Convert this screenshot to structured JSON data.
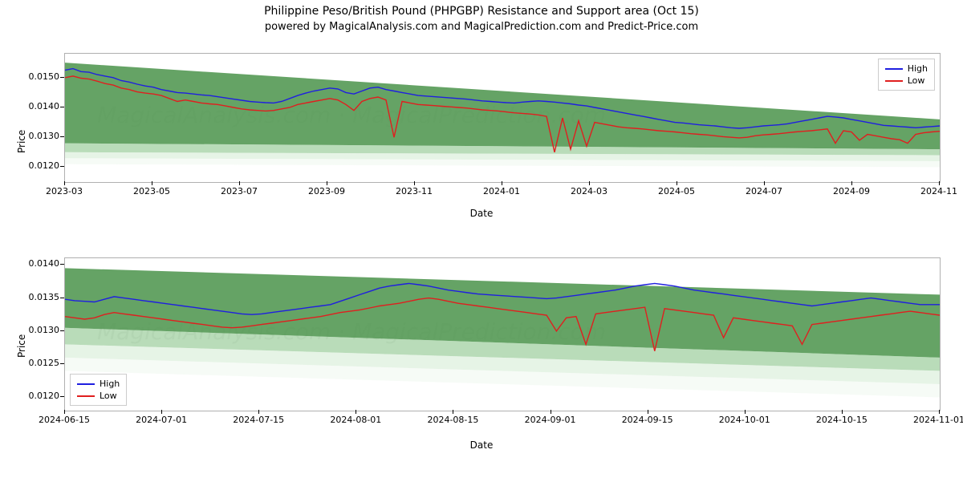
{
  "title": "Philippine Peso/British Pound (PHPGBP) Resistance and Support area (Oct 15)",
  "subtitle": "powered by MagicalAnalysis.com and MagicalPrediction.com and Predict-Price.com",
  "watermark_text": "MagicalAnalysis.com · MagicalPrediction.com",
  "colors": {
    "high": "#1f1fe0",
    "low": "#e01f1f",
    "band_dark": "#4a934a",
    "band_mid": "#7fbf7f",
    "band_light": "#c8e6c8",
    "band_lighter": "#e8f5e8",
    "grid": "#b0b0b0",
    "background": "#ffffff"
  },
  "legend": {
    "high": "High",
    "low": "Low"
  },
  "chart_top": {
    "x_label": "Date",
    "y_label": "Price",
    "x_ticks": [
      "2023-03",
      "2023-05",
      "2023-07",
      "2023-09",
      "2023-11",
      "2024-01",
      "2024-03",
      "2024-05",
      "2024-07",
      "2024-09",
      "2024-11"
    ],
    "y_ticks": [
      0.012,
      0.013,
      0.014,
      0.015
    ],
    "y_lim": [
      0.0115,
      0.0158
    ],
    "x_range_n": 110,
    "legend_pos": "top-right",
    "bands": [
      {
        "y0_start": 0.0155,
        "y0_end": 0.0136,
        "y1_start": 0.0128,
        "y1_end": 0.0126,
        "color": "#4a934a",
        "opacity": 0.85
      },
      {
        "y0_start": 0.0128,
        "y0_end": 0.0126,
        "y1_start": 0.0125,
        "y1_end": 0.0124,
        "color": "#7fbf7f",
        "opacity": 0.55
      },
      {
        "y0_start": 0.0125,
        "y0_end": 0.0124,
        "y1_start": 0.0123,
        "y1_end": 0.0122,
        "color": "#c8e6c8",
        "opacity": 0.45
      },
      {
        "y0_start": 0.0123,
        "y0_end": 0.0122,
        "y1_start": 0.0121,
        "y1_end": 0.012,
        "color": "#e8f5e8",
        "opacity": 0.4
      }
    ],
    "high_series": [
      0.01525,
      0.0153,
      0.0152,
      0.01518,
      0.0151,
      0.01505,
      0.015,
      0.0149,
      0.01485,
      0.01478,
      0.01472,
      0.01468,
      0.0146,
      0.01455,
      0.0145,
      0.01448,
      0.01445,
      0.01442,
      0.0144,
      0.01436,
      0.01432,
      0.01428,
      0.01424,
      0.0142,
      0.01418,
      0.01416,
      0.01415,
      0.0142,
      0.0143,
      0.0144,
      0.01448,
      0.01455,
      0.0146,
      0.01465,
      0.01462,
      0.0145,
      0.01445,
      0.01455,
      0.01465,
      0.01468,
      0.0146,
      0.01455,
      0.0145,
      0.01445,
      0.0144,
      0.01438,
      0.01436,
      0.01434,
      0.01432,
      0.0143,
      0.01428,
      0.01425,
      0.01422,
      0.0142,
      0.01418,
      0.01416,
      0.01415,
      0.01418,
      0.0142,
      0.01422,
      0.0142,
      0.01418,
      0.01415,
      0.01412,
      0.01408,
      0.01405,
      0.014,
      0.01395,
      0.0139,
      0.01385,
      0.0138,
      0.01375,
      0.0137,
      0.01365,
      0.0136,
      0.01355,
      0.0135,
      0.01348,
      0.01345,
      0.01342,
      0.0134,
      0.01338,
      0.01335,
      0.01332,
      0.0133,
      0.01332,
      0.01335,
      0.01338,
      0.0134,
      0.01342,
      0.01345,
      0.0135,
      0.01355,
      0.0136,
      0.01365,
      0.0137,
      0.01368,
      0.01365,
      0.0136,
      0.01355,
      0.0135,
      0.01345,
      0.0134,
      0.01338,
      0.01336,
      0.01334,
      0.01332,
      0.01334,
      0.01336,
      0.01338
    ],
    "low_series": [
      0.015,
      0.01505,
      0.01498,
      0.01495,
      0.01488,
      0.0148,
      0.01475,
      0.01465,
      0.0146,
      0.01452,
      0.01448,
      0.01445,
      0.0144,
      0.0143,
      0.0142,
      0.01425,
      0.0142,
      0.01415,
      0.01412,
      0.0141,
      0.01405,
      0.014,
      0.01395,
      0.01392,
      0.0139,
      0.01388,
      0.0139,
      0.01395,
      0.014,
      0.0141,
      0.01415,
      0.0142,
      0.01425,
      0.0143,
      0.01425,
      0.0141,
      0.0139,
      0.0142,
      0.0143,
      0.01435,
      0.01425,
      0.013,
      0.0142,
      0.01415,
      0.0141,
      0.01408,
      0.01406,
      0.01404,
      0.01402,
      0.014,
      0.01398,
      0.01395,
      0.01392,
      0.0139,
      0.01388,
      0.01385,
      0.01382,
      0.0138,
      0.01378,
      0.01375,
      0.0137,
      0.0125,
      0.01365,
      0.0126,
      0.01355,
      0.0127,
      0.0135,
      0.01345,
      0.0134,
      0.01335,
      0.01332,
      0.0133,
      0.01328,
      0.01325,
      0.01322,
      0.0132,
      0.01318,
      0.01315,
      0.01312,
      0.0131,
      0.01308,
      0.01305,
      0.01302,
      0.013,
      0.01298,
      0.013,
      0.01305,
      0.01308,
      0.0131,
      0.01312,
      0.01315,
      0.01318,
      0.0132,
      0.01322,
      0.01325,
      0.01328,
      0.0128,
      0.01322,
      0.01318,
      0.0129,
      0.0131,
      0.01305,
      0.013,
      0.01295,
      0.01292,
      0.0128,
      0.0131,
      0.01315,
      0.01318,
      0.0132
    ]
  },
  "chart_bottom": {
    "x_label": "Date",
    "y_label": "Price",
    "x_ticks": [
      "2024-06-15",
      "2024-07-01",
      "2024-07-15",
      "2024-08-01",
      "2024-08-15",
      "2024-09-01",
      "2024-09-15",
      "2024-10-01",
      "2024-10-15",
      "2024-11-01"
    ],
    "y_ticks": [
      0.012,
      0.0125,
      0.013,
      0.0135,
      0.014
    ],
    "y_lim": [
      0.0118,
      0.0141
    ],
    "x_range_n": 100,
    "legend_pos": "bottom-left",
    "bands": [
      {
        "y0_start": 0.01395,
        "y0_end": 0.01355,
        "y1_start": 0.01305,
        "y1_end": 0.0126,
        "color": "#4a934a",
        "opacity": 0.85
      },
      {
        "y0_start": 0.01305,
        "y0_end": 0.0126,
        "y1_start": 0.0128,
        "y1_end": 0.0124,
        "color": "#7fbf7f",
        "opacity": 0.55
      },
      {
        "y0_start": 0.0128,
        "y0_end": 0.0124,
        "y1_start": 0.0126,
        "y1_end": 0.0122,
        "color": "#c8e6c8",
        "opacity": 0.45
      },
      {
        "y0_start": 0.0126,
        "y0_end": 0.0122,
        "y1_start": 0.0124,
        "y1_end": 0.012,
        "color": "#e8f5e8",
        "opacity": 0.4
      }
    ],
    "high_series": [
      0.01348,
      0.01346,
      0.01345,
      0.01344,
      0.01348,
      0.01352,
      0.0135,
      0.01348,
      0.01346,
      0.01344,
      0.01342,
      0.0134,
      0.01338,
      0.01336,
      0.01334,
      0.01332,
      0.0133,
      0.01328,
      0.01326,
      0.01325,
      0.01326,
      0.01328,
      0.0133,
      0.01332,
      0.01334,
      0.01336,
      0.01338,
      0.0134,
      0.01345,
      0.0135,
      0.01355,
      0.0136,
      0.01365,
      0.01368,
      0.0137,
      0.01372,
      0.0137,
      0.01368,
      0.01365,
      0.01362,
      0.0136,
      0.01358,
      0.01356,
      0.01355,
      0.01354,
      0.01353,
      0.01352,
      0.01351,
      0.0135,
      0.01349,
      0.0135,
      0.01352,
      0.01354,
      0.01356,
      0.01358,
      0.0136,
      0.01362,
      0.01365,
      0.01368,
      0.0137,
      0.01372,
      0.0137,
      0.01368,
      0.01365,
      0.01362,
      0.0136,
      0.01358,
      0.01356,
      0.01354,
      0.01352,
      0.0135,
      0.01348,
      0.01346,
      0.01344,
      0.01342,
      0.0134,
      0.01338,
      0.0134,
      0.01342,
      0.01344,
      0.01346,
      0.01348,
      0.0135,
      0.01348,
      0.01346,
      0.01344,
      0.01342,
      0.0134,
      0.0134,
      0.0134
    ],
    "low_series": [
      0.01322,
      0.0132,
      0.01318,
      0.0132,
      0.01325,
      0.01328,
      0.01326,
      0.01324,
      0.01322,
      0.0132,
      0.01318,
      0.01316,
      0.01314,
      0.01312,
      0.0131,
      0.01308,
      0.01306,
      0.01305,
      0.01306,
      0.01308,
      0.0131,
      0.01312,
      0.01314,
      0.01316,
      0.01318,
      0.0132,
      0.01322,
      0.01325,
      0.01328,
      0.0133,
      0.01332,
      0.01335,
      0.01338,
      0.0134,
      0.01342,
      0.01345,
      0.01348,
      0.0135,
      0.01348,
      0.01345,
      0.01342,
      0.0134,
      0.01338,
      0.01336,
      0.01334,
      0.01332,
      0.0133,
      0.01328,
      0.01326,
      0.01324,
      0.013,
      0.0132,
      0.01322,
      0.0128,
      0.01326,
      0.01328,
      0.0133,
      0.01332,
      0.01334,
      0.01336,
      0.0127,
      0.01334,
      0.01332,
      0.0133,
      0.01328,
      0.01326,
      0.01324,
      0.0129,
      0.0132,
      0.01318,
      0.01316,
      0.01314,
      0.01312,
      0.0131,
      0.01308,
      0.0128,
      0.0131,
      0.01312,
      0.01314,
      0.01316,
      0.01318,
      0.0132,
      0.01322,
      0.01324,
      0.01326,
      0.01328,
      0.0133,
      0.01328,
      0.01326,
      0.01324
    ]
  }
}
